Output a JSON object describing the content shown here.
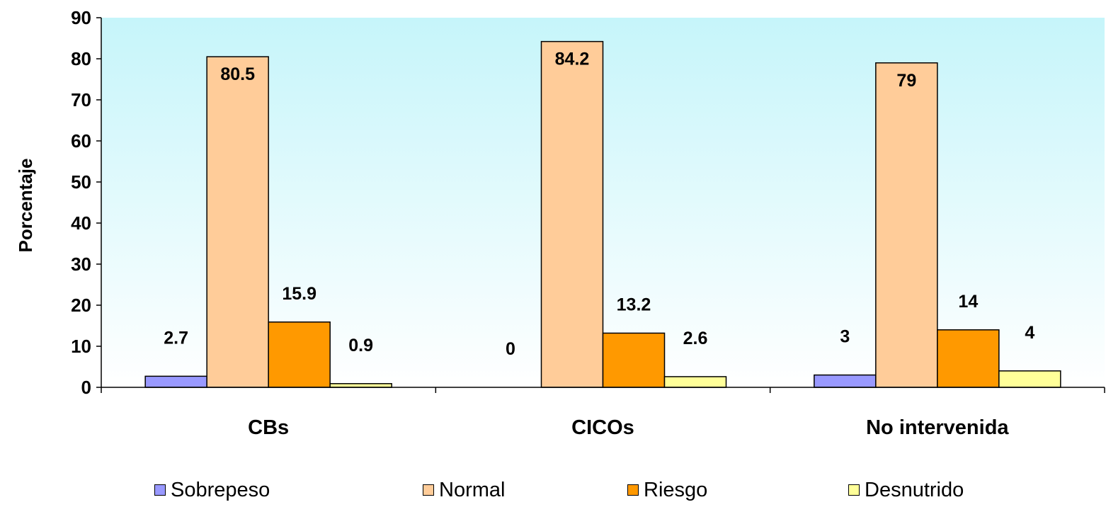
{
  "chart_data": {
    "type": "bar",
    "title": "",
    "xlabel": "",
    "ylabel": "Porcentaje",
    "ylim": [
      0,
      90
    ],
    "yticks": [
      0,
      10,
      20,
      30,
      40,
      50,
      60,
      70,
      80,
      90
    ],
    "grid": false,
    "legend_position": "bottom",
    "plot_background": "gradient light cyan to white",
    "categories": [
      "CBs",
      "CICOs",
      "No intervenida"
    ],
    "series": [
      {
        "name": "Sobrepeso",
        "color": "#9999ff",
        "values": [
          2.7,
          0,
          3
        ],
        "labels": [
          "2.7",
          "0",
          "3"
        ]
      },
      {
        "name": "Normal",
        "color": "#ffcc99",
        "values": [
          80.5,
          84.2,
          79
        ],
        "labels": [
          "80.5",
          "84.2",
          "79"
        ]
      },
      {
        "name": "Riesgo",
        "color": "#ff9900",
        "values": [
          15.9,
          13.2,
          14
        ],
        "labels": [
          "15.9",
          "13.2",
          "14"
        ]
      },
      {
        "name": "Desnutrido",
        "color": "#ffff99",
        "values": [
          0.9,
          2.6,
          4
        ],
        "labels": [
          "0.9",
          "2.6",
          "4"
        ]
      }
    ]
  }
}
